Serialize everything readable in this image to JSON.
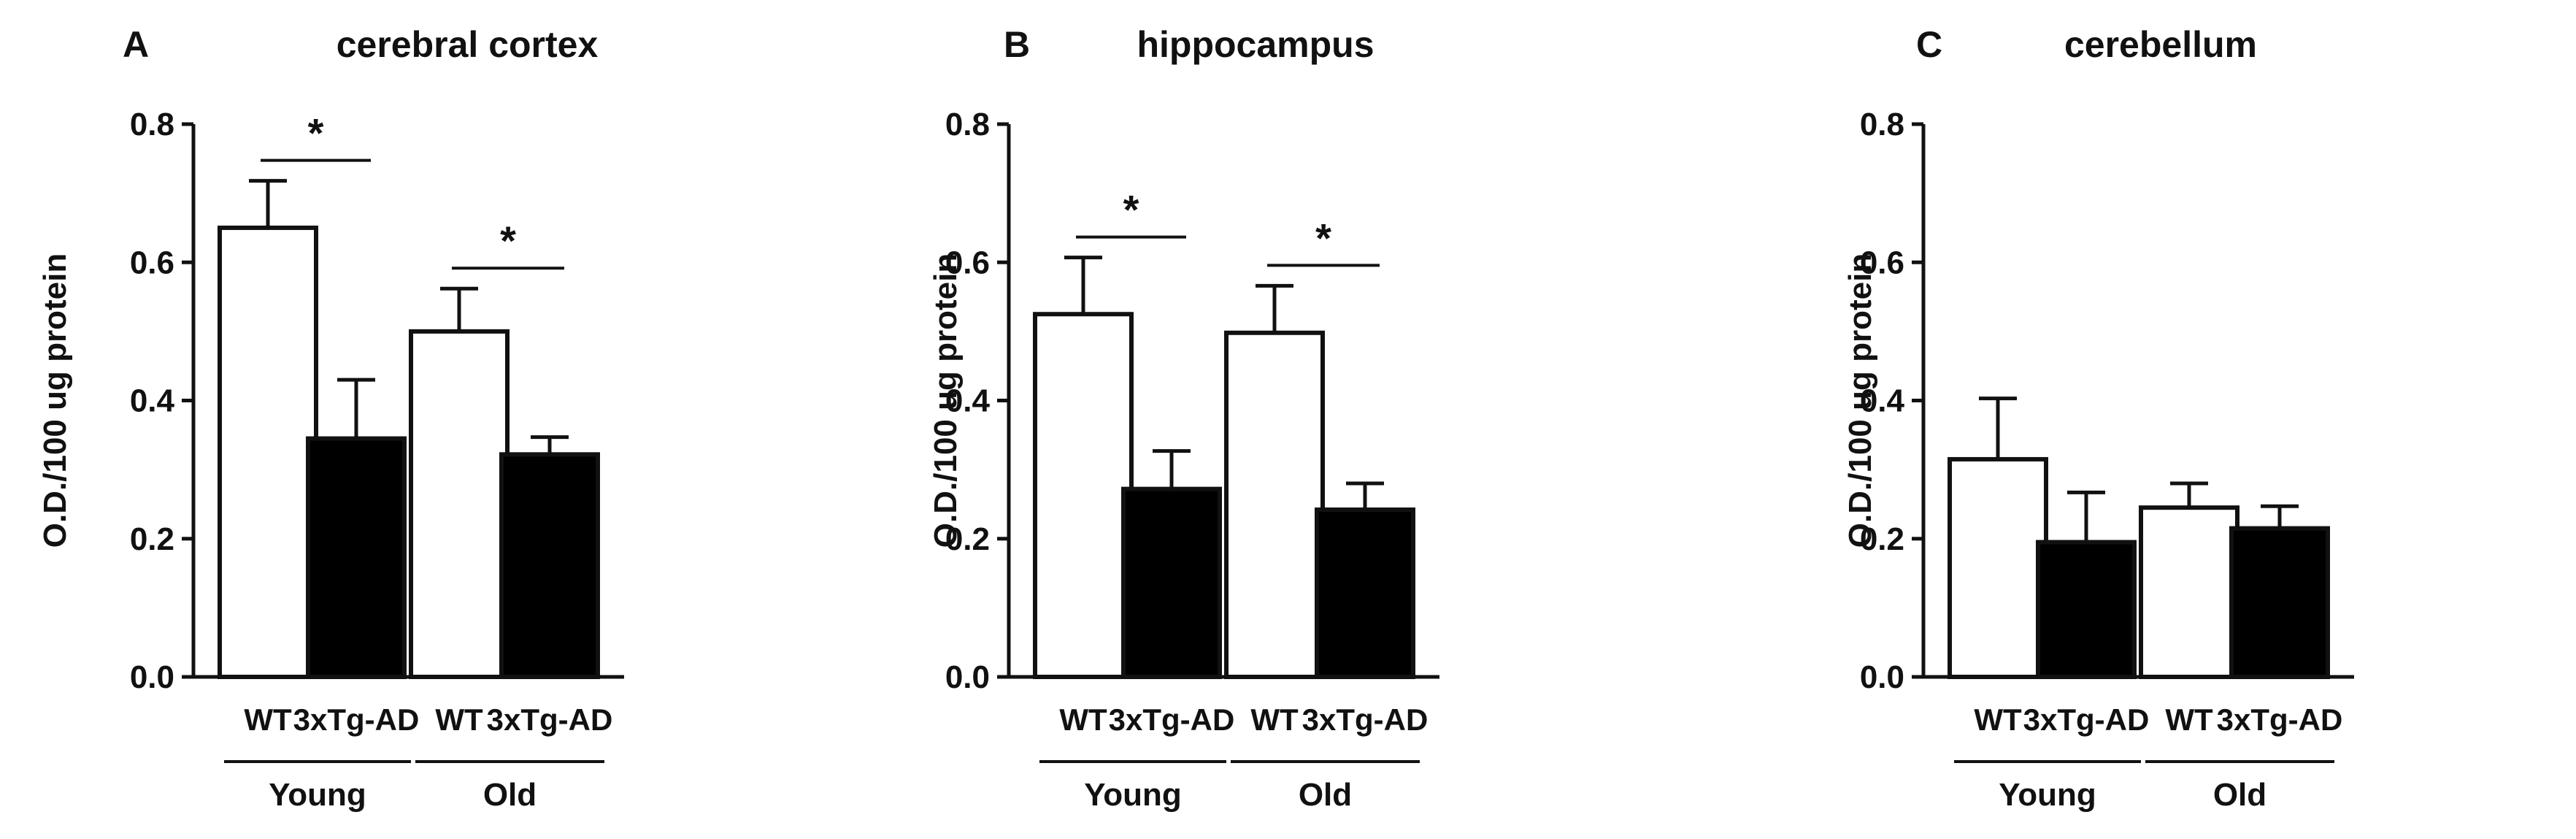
{
  "chart_data": [
    {
      "type": "bar",
      "panel": "A",
      "title": "cerebral cortex",
      "ylabel": "O.D./100 ug protein",
      "ylim": [
        0,
        0.8
      ],
      "yticks": [
        "0.0",
        "0.2",
        "0.4",
        "0.6",
        "0.8"
      ],
      "categories": [
        "WT",
        "3xTg-AD",
        "WT",
        "3xTg-AD"
      ],
      "groups": [
        {
          "label": "Young",
          "members": [
            0,
            1
          ]
        },
        {
          "label": "Old",
          "members": [
            2,
            3
          ]
        }
      ],
      "values": [
        0.65,
        0.345,
        0.5,
        0.322
      ],
      "errors": [
        0.068,
        0.085,
        0.062,
        0.025
      ],
      "fills": [
        "#ffffff",
        "#000000",
        "#ffffff",
        "#000000"
      ],
      "significance": [
        {
          "between": [
            0,
            1
          ],
          "label": "*"
        },
        {
          "between": [
            2,
            3
          ],
          "label": "*"
        }
      ]
    },
    {
      "type": "bar",
      "panel": "B",
      "title": "hippocampus",
      "ylabel": "O.D./100 ug protein",
      "ylim": [
        0,
        0.8
      ],
      "yticks": [
        "0.0",
        "0.2",
        "0.4",
        "0.6",
        "0.8"
      ],
      "categories": [
        "WT",
        "3xTg-AD",
        "WT",
        "3xTg-AD"
      ],
      "groups": [
        {
          "label": "Young",
          "members": [
            0,
            1
          ]
        },
        {
          "label": "Old",
          "members": [
            2,
            3
          ]
        }
      ],
      "values": [
        0.525,
        0.272,
        0.498,
        0.242
      ],
      "errors": [
        0.082,
        0.055,
        0.068,
        0.038
      ],
      "fills": [
        "#ffffff",
        "#000000",
        "#ffffff",
        "#000000"
      ],
      "significance": [
        {
          "between": [
            0,
            1
          ],
          "label": "*"
        },
        {
          "between": [
            2,
            3
          ],
          "label": "*"
        }
      ]
    },
    {
      "type": "bar",
      "panel": "C",
      "title": "cerebellum",
      "ylabel": "O.D./100 ug protein",
      "ylim": [
        0,
        0.8
      ],
      "yticks": [
        "0.0",
        "0.2",
        "0.4",
        "0.6",
        "0.8"
      ],
      "categories": [
        "WT",
        "3xTg-AD",
        "WT",
        "3xTg-AD"
      ],
      "groups": [
        {
          "label": "Young",
          "members": [
            0,
            1
          ]
        },
        {
          "label": "Old",
          "members": [
            2,
            3
          ]
        }
      ],
      "values": [
        0.315,
        0.195,
        0.245,
        0.215
      ],
      "errors": [
        0.088,
        0.072,
        0.035,
        0.032
      ],
      "fills": [
        "#ffffff",
        "#000000",
        "#ffffff",
        "#000000"
      ],
      "significance": []
    }
  ]
}
